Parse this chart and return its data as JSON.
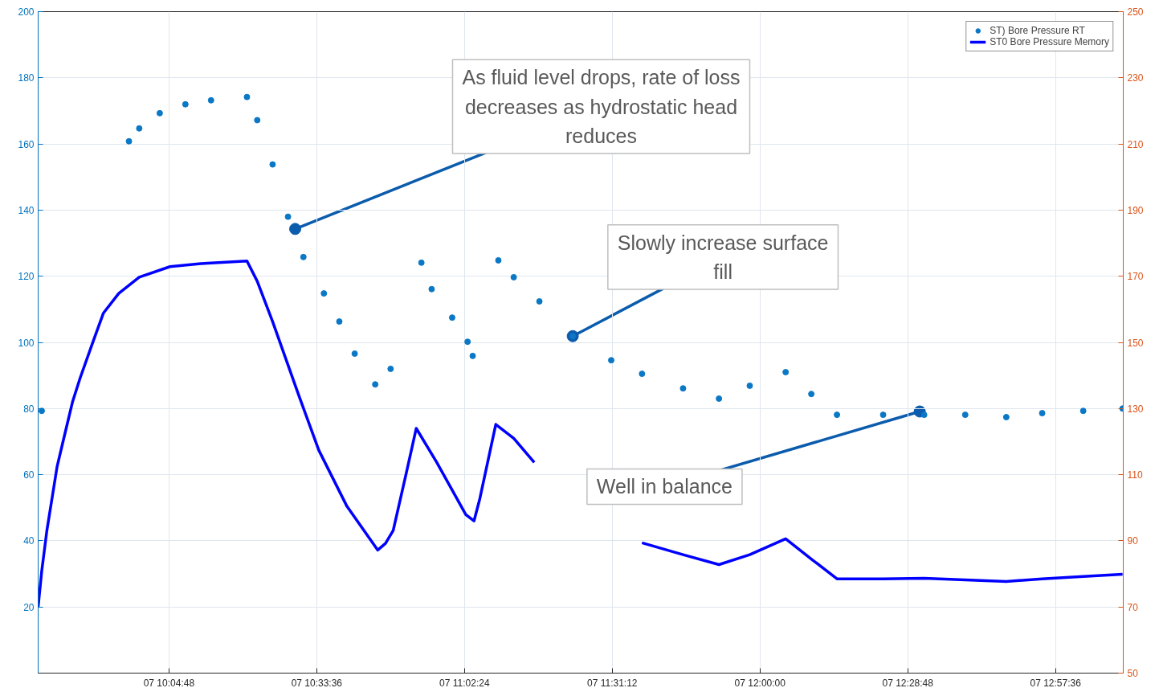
{
  "chart_data": {
    "type": "scatter",
    "xlim": [
      "2000-01-07T09:39:18",
      "2000-01-07T13:10:48"
    ],
    "xticks": [
      {
        "value": "2000-01-07T10:04:48",
        "label": "07 10:04:48"
      },
      {
        "value": "2000-01-07T10:33:36",
        "label": "07 10:33:36"
      },
      {
        "value": "2000-01-07T11:02:24",
        "label": "07 11:02:24"
      },
      {
        "value": "2000-01-07T11:31:12",
        "label": "07 11:31:12"
      },
      {
        "value": "2000-01-07T12:00:00",
        "label": "07 12:00:00"
      },
      {
        "value": "2000-01-07T12:28:48",
        "label": "07 12:28:48"
      },
      {
        "value": "2000-01-07T12:57:36",
        "label": "07 12:57:36"
      }
    ],
    "ylim": [
      0,
      200
    ],
    "yticks": [
      20,
      40,
      60,
      80,
      100,
      120,
      140,
      160,
      180,
      200
    ],
    "y2lim": [
      50,
      250
    ],
    "y2ticks": [
      50,
      70,
      90,
      110,
      130,
      150,
      170,
      190,
      210,
      230,
      250
    ],
    "grid": true,
    "legend": "top right",
    "series": [
      {
        "name": "ST) Bore Pressure RT",
        "marker": "circle",
        "color": "#0b78c6",
        "x": [
          "2000-01-07T09:40",
          "2000-01-07T09:57",
          "2000-01-07T09:59",
          "2000-01-07T10:03",
          "2000-01-07T10:08",
          "2000-01-07T10:13",
          "2000-01-07T10:20",
          "2000-01-07T10:22",
          "2000-01-07T10:25",
          "2000-01-07T10:28",
          "2000-01-07T10:31",
          "2000-01-07T10:35",
          "2000-01-07T10:38",
          "2000-01-07T10:41",
          "2000-01-07T10:45",
          "2000-01-07T10:48",
          "2000-01-07T10:54",
          "2000-01-07T10:56",
          "2000-01-07T11:00",
          "2000-01-07T11:03",
          "2000-01-07T11:04",
          "2000-01-07T11:09",
          "2000-01-07T11:12",
          "2000-01-07T11:17",
          "2000-01-07T11:23:30",
          "2000-01-07T11:31",
          "2000-01-07T11:37",
          "2000-01-07T11:45",
          "2000-01-07T11:52",
          "2000-01-07T11:58",
          "2000-01-07T12:05",
          "2000-01-07T12:10",
          "2000-01-07T12:15",
          "2000-01-07T12:24",
          "2000-01-07T12:32",
          "2000-01-07T12:40",
          "2000-01-07T12:48",
          "2000-01-07T12:55",
          "2000-01-07T13:03",
          "2000-01-07T13:10:40"
        ],
        "values": [
          79.3,
          160.8,
          164.7,
          169.3,
          172.0,
          173.2,
          174.2,
          167.2,
          153.8,
          138.0,
          125.8,
          114.8,
          106.3,
          96.6,
          87.3,
          92.0,
          124.1,
          116.1,
          107.5,
          100.2,
          95.9,
          124.8,
          119.7,
          112.4,
          101.9,
          94.6,
          90.5,
          86.1,
          83.0,
          86.9,
          91.0,
          84.4,
          78.1,
          78.1,
          78.1,
          78.1,
          77.4,
          78.6,
          79.3,
          80.0
        ]
      },
      {
        "name": "ST0 Bore Pressure Memory",
        "type": "line",
        "color": "#0000ff",
        "x": [
          "2000-01-07T09:39:18",
          "2000-01-07T09:40",
          "2000-01-07T09:41",
          "2000-01-07T09:42",
          "2000-01-07T09:43",
          "2000-01-07T09:44:30",
          "2000-01-07T09:46",
          "2000-01-07T09:47:30",
          "2000-01-07T09:50",
          "2000-01-07T09:52",
          "2000-01-07T09:55",
          "2000-01-07T09:59",
          "2000-01-07T10:05",
          "2000-01-07T10:11",
          "2000-01-07T10:20",
          "2000-01-07T10:22",
          "2000-01-07T10:25",
          "2000-01-07T10:30",
          "2000-01-07T10:34",
          "2000-01-07T10:39:30",
          "2000-01-07T10:45:30",
          "2000-01-07T10:47",
          "2000-01-07T10:48:30",
          "2000-01-07T10:51",
          "2000-01-07T10:53",
          "2000-01-07T10:57",
          "2000-01-07T11:02:40",
          "2000-01-07T11:04:15",
          "2000-01-07T11:05:24",
          "2000-01-07T11:08:30",
          "2000-01-07T11:12",
          "2000-01-07T11:16",
          "2000-01-07T11:21:30",
          "2000-01-07T11:29",
          "2000-01-07T11:37",
          "2000-01-07T11:45",
          "2000-01-07T11:52",
          "2000-01-07T11:58",
          "2000-01-07T12:05",
          "2000-01-07T12:10",
          "2000-01-07T12:15",
          "2000-01-07T12:24",
          "2000-01-07T12:32",
          "2000-01-07T12:40",
          "2000-01-07T12:48",
          "2000-01-07T12:55",
          "2000-01-07T13:03",
          "2000-01-07T13:10:40"
        ],
        "values": [
          20.0,
          30.9,
          43.1,
          52.8,
          62.5,
          72.3,
          82.0,
          89.3,
          100.2,
          108.8,
          114.8,
          119.7,
          122.9,
          123.8,
          124.6,
          118.5,
          106.3,
          84.4,
          67.4,
          50.4,
          37.2,
          39.2,
          43.1,
          60.1,
          74.0,
          63.7,
          47.9,
          46.0,
          52.8,
          75.2,
          71.0,
          63.7,
          null,
          null,
          39.4,
          35.8,
          32.8,
          35.8,
          40.6,
          34.5,
          28.5,
          28.5,
          28.7,
          28.2,
          27.7,
          28.5,
          29.2,
          29.9
        ]
      }
    ],
    "annotations": [
      {
        "text": "As fluid level drops, rate of loss decreases as hydrostatic head reduces",
        "x": "2000-01-07T10:29:24",
        "y": 134.3
      },
      {
        "text": "Slowly increase surface fill",
        "x": "2000-01-07T11:23:30",
        "y": 101.9
      },
      {
        "text": "Well in balance",
        "x": "2000-01-07T12:31:08",
        "y": 79.1
      }
    ]
  }
}
